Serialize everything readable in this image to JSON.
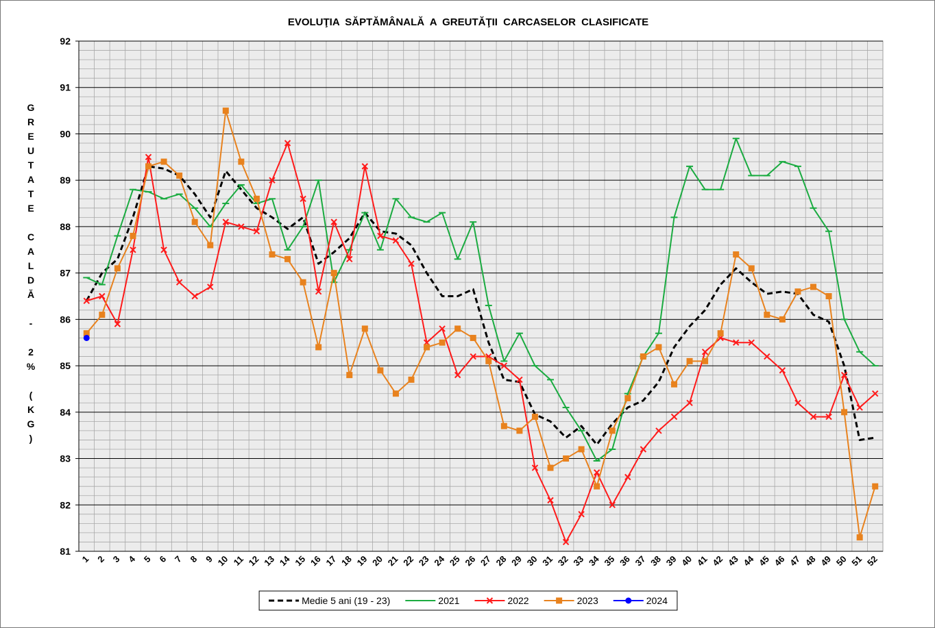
{
  "chart_data": {
    "type": "line",
    "title": "EVOLUŢIA SĂPTĂMÂNALĂ A GREUTĂŢII CARCASELOR CLASIFICATE",
    "y_label": "GREUTATE CALDĂ - 2% (KG)",
    "categories": [
      "1",
      "2",
      "3",
      "4",
      "5",
      "6",
      "7",
      "8",
      "9",
      "10",
      "11",
      "12",
      "13",
      "14",
      "15",
      "16",
      "17",
      "18",
      "19",
      "20",
      "21",
      "22",
      "23",
      "24",
      "25",
      "26",
      "27",
      "28",
      "29",
      "30",
      "31",
      "32",
      "33",
      "34",
      "35",
      "36",
      "37",
      "38",
      "39",
      "40",
      "41",
      "42",
      "43",
      "44",
      "45",
      "46",
      "47",
      "48",
      "49",
      "50",
      "51",
      "52"
    ],
    "ylim": [
      81,
      92
    ],
    "yticks": [
      81,
      82,
      83,
      84,
      85,
      86,
      87,
      88,
      89,
      90,
      91,
      92
    ],
    "grid": true,
    "legend": "bottom",
    "series": [
      {
        "name": "Medie 5 ani (19 - 23)",
        "color": "#000000",
        "dash": true,
        "marker": "none",
        "values": [
          86.4,
          87.0,
          87.3,
          88.2,
          89.3,
          89.25,
          89.1,
          88.7,
          88.2,
          89.2,
          88.8,
          88.4,
          88.2,
          87.95,
          88.2,
          87.2,
          87.45,
          87.75,
          88.3,
          87.9,
          87.85,
          87.6,
          87.0,
          86.5,
          86.5,
          86.65,
          85.5,
          84.7,
          84.65,
          83.95,
          83.8,
          83.45,
          83.7,
          83.3,
          83.75,
          84.1,
          84.25,
          84.65,
          85.4,
          85.85,
          86.2,
          86.75,
          87.1,
          86.8,
          86.55,
          86.6,
          86.55,
          86.1,
          85.95,
          85.0,
          83.4,
          83.45
        ]
      },
      {
        "name": "2021",
        "color": "#1aab40",
        "dash": false,
        "marker": "dash",
        "values": [
          86.9,
          86.75,
          87.8,
          88.8,
          88.75,
          88.6,
          88.7,
          88.4,
          88.0,
          88.5,
          88.9,
          88.5,
          88.6,
          87.5,
          88.0,
          89.0,
          86.8,
          87.5,
          88.3,
          87.5,
          88.6,
          88.2,
          88.1,
          88.3,
          87.3,
          88.1,
          86.3,
          85.1,
          85.7,
          85.0,
          84.7,
          84.1,
          83.6,
          82.95,
          83.2,
          84.4,
          85.2,
          85.7,
          88.2,
          89.3,
          88.8,
          88.8,
          89.9,
          89.1,
          89.1,
          89.4,
          89.3,
          88.4,
          87.9,
          86.0,
          85.3,
          85.0
        ]
      },
      {
        "name": "2022",
        "color": "#ff1a1a",
        "dash": false,
        "marker": "x",
        "values": [
          86.4,
          86.5,
          85.9,
          87.5,
          89.5,
          87.5,
          86.8,
          86.5,
          86.7,
          88.1,
          88.0,
          87.9,
          89.0,
          89.8,
          88.6,
          86.6,
          88.1,
          87.3,
          89.3,
          87.8,
          87.7,
          87.2,
          85.5,
          85.8,
          84.8,
          85.2,
          85.2,
          85.0,
          84.7,
          82.8,
          82.1,
          81.2,
          81.8,
          82.7,
          82.0,
          82.6,
          83.2,
          83.6,
          83.9,
          84.2,
          85.3,
          85.6,
          85.5,
          85.5,
          85.2,
          84.9,
          84.2,
          83.9,
          83.9,
          84.8,
          84.1,
          84.4
        ]
      },
      {
        "name": "2023",
        "color": "#e8821e",
        "dash": false,
        "marker": "square",
        "values": [
          85.7,
          86.1,
          87.1,
          87.8,
          89.3,
          89.4,
          89.1,
          88.1,
          87.6,
          90.5,
          89.4,
          88.6,
          87.4,
          87.3,
          86.8,
          85.4,
          87.0,
          84.8,
          85.8,
          84.9,
          84.4,
          84.7,
          85.4,
          85.5,
          85.8,
          85.6,
          85.1,
          83.7,
          83.6,
          83.9,
          82.8,
          83.0,
          83.2,
          82.4,
          83.6,
          84.3,
          85.2,
          85.4,
          84.6,
          85.1,
          85.1,
          85.7,
          87.4,
          87.1,
          86.1,
          86.0,
          86.6,
          86.7,
          86.5,
          84.0,
          81.3,
          82.4
        ]
      },
      {
        "name": "2024",
        "color": "#0000ff",
        "dash": false,
        "marker": "circle",
        "values": [
          85.6,
          null,
          null,
          null,
          null,
          null,
          null,
          null,
          null,
          null,
          null,
          null,
          null,
          null,
          null,
          null,
          null,
          null,
          null,
          null,
          null,
          null,
          null,
          null,
          null,
          null,
          null,
          null,
          null,
          null,
          null,
          null,
          null,
          null,
          null,
          null,
          null,
          null,
          null,
          null,
          null,
          null,
          null,
          null,
          null,
          null,
          null,
          null,
          null,
          null,
          null,
          null
        ]
      }
    ]
  }
}
